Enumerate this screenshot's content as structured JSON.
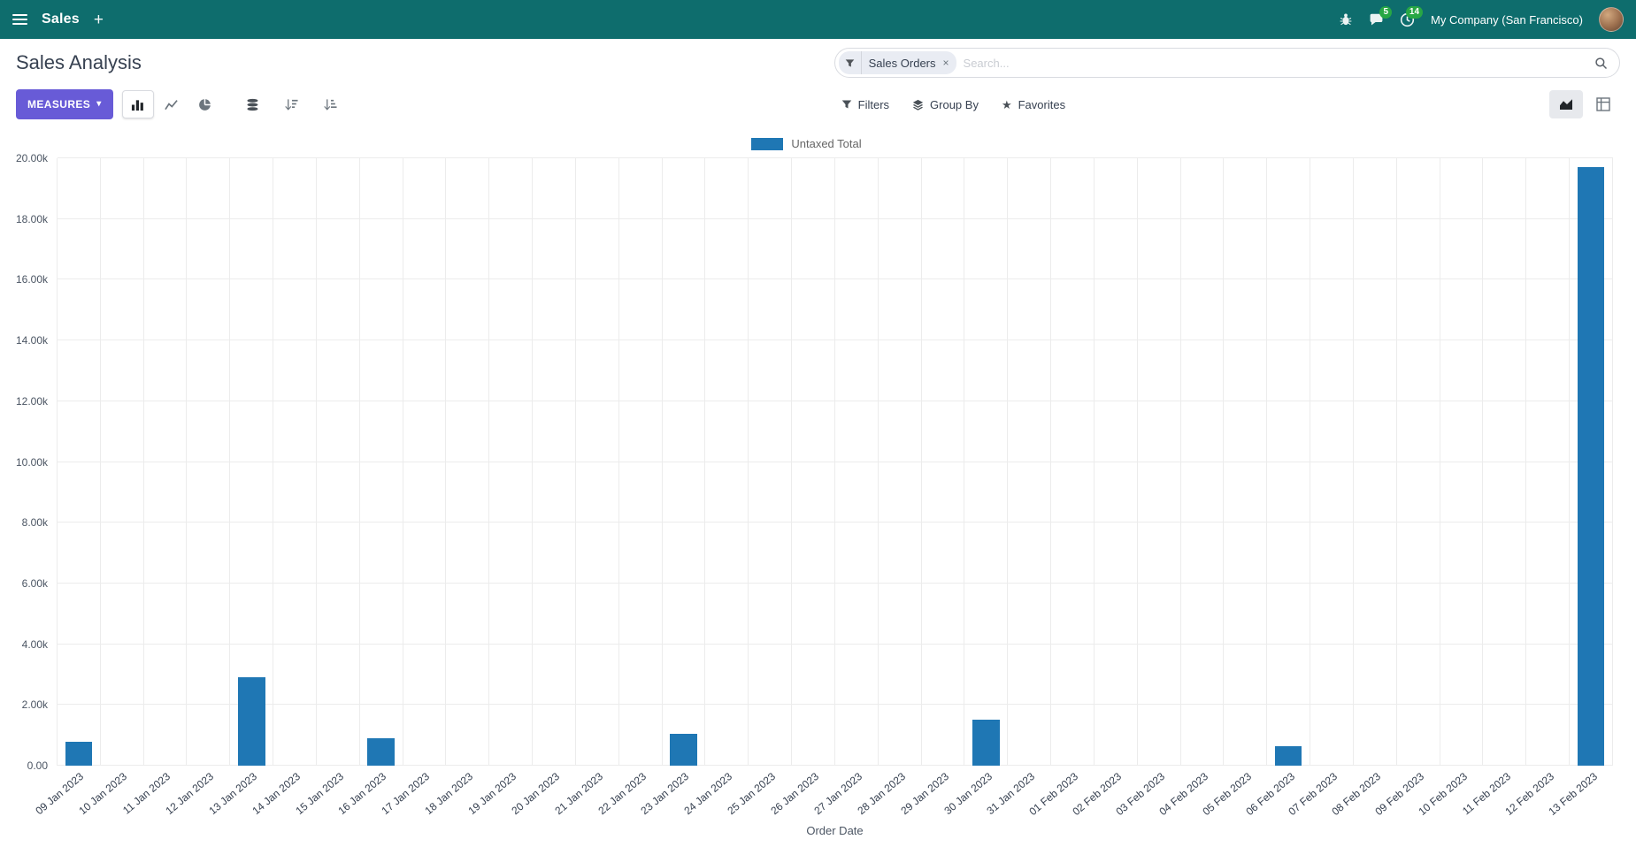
{
  "theme": {
    "navbar_bg": "#0e6d6d",
    "primary_button": "#685bd7",
    "badge": "#28a745"
  },
  "nav": {
    "app": "Sales",
    "plus": "+",
    "messages_badge": "5",
    "activities_badge": "14",
    "company": "My Company (San Francisco)"
  },
  "control": {
    "title": "Sales Analysis",
    "search": {
      "facet": "Sales Orders",
      "remove": "×",
      "placeholder": "Search..."
    },
    "measures": "MEASURES",
    "caret": "▾",
    "filters": "Filters",
    "group_by": "Group By",
    "favorites": "Favorites",
    "favorites_star": "★"
  },
  "chart_data": {
    "type": "bar",
    "title": "",
    "xlabel": "Order Date",
    "ylim": [
      0,
      20000
    ],
    "ytick_labels": [
      "0.00",
      "2.00k",
      "4.00k",
      "6.00k",
      "8.00k",
      "10.00k",
      "12.00k",
      "14.00k",
      "16.00k",
      "18.00k",
      "20.00k"
    ],
    "grid": true,
    "legend_position": "top",
    "categories": [
      "09 Jan 2023",
      "10 Jan 2023",
      "11 Jan 2023",
      "12 Jan 2023",
      "13 Jan 2023",
      "14 Jan 2023",
      "15 Jan 2023",
      "16 Jan 2023",
      "17 Jan 2023",
      "18 Jan 2023",
      "19 Jan 2023",
      "20 Jan 2023",
      "21 Jan 2023",
      "22 Jan 2023",
      "23 Jan 2023",
      "24 Jan 2023",
      "25 Jan 2023",
      "26 Jan 2023",
      "27 Jan 2023",
      "28 Jan 2023",
      "29 Jan 2023",
      "30 Jan 2023",
      "31 Jan 2023",
      "01 Feb 2023",
      "02 Feb 2023",
      "03 Feb 2023",
      "04 Feb 2023",
      "05 Feb 2023",
      "06 Feb 2023",
      "07 Feb 2023",
      "08 Feb 2023",
      "09 Feb 2023",
      "10 Feb 2023",
      "11 Feb 2023",
      "12 Feb 2023",
      "13 Feb 2023"
    ],
    "series": [
      {
        "name": "Untaxed Total",
        "color": "#1f77b4",
        "values": [
          800,
          0,
          0,
          0,
          2900,
          0,
          0,
          900,
          0,
          0,
          0,
          0,
          0,
          0,
          1050,
          0,
          0,
          0,
          0,
          0,
          0,
          1500,
          0,
          0,
          0,
          0,
          0,
          0,
          650,
          0,
          0,
          0,
          0,
          0,
          0,
          19700
        ]
      }
    ]
  }
}
